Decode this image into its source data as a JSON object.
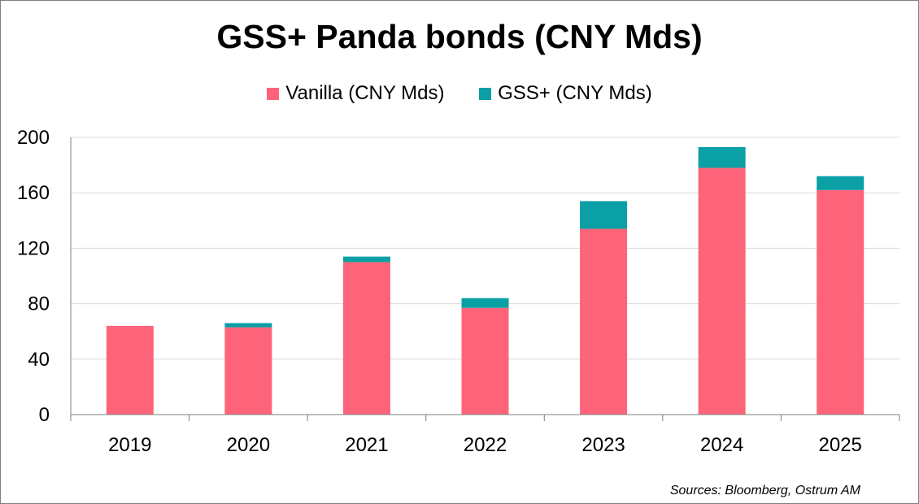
{
  "colors": {
    "vanilla": "#fe6479",
    "gss": "#0aa0a6",
    "grid": "#d9d9d9",
    "axis": "#7f7f7f"
  },
  "chart_data": {
    "type": "bar",
    "stacked": true,
    "title": "GSS+ Panda bonds (CNY Mds)",
    "categories": [
      "2019",
      "2020",
      "2021",
      "2022",
      "2023",
      "2024",
      "2025"
    ],
    "series": [
      {
        "name": "Vanilla (CNY Mds)",
        "values": [
          64,
          63,
          110,
          77,
          134,
          178,
          162
        ]
      },
      {
        "name": "GSS+ (CNY Mds)",
        "values": [
          0,
          3,
          4,
          7,
          20,
          15,
          10
        ]
      }
    ],
    "ylim": [
      0,
      200
    ],
    "yticks": [
      "0",
      "40",
      "80",
      "120",
      "160",
      "200"
    ],
    "xlabel": "",
    "ylabel": "",
    "grid": true,
    "legend": "top-center"
  },
  "source": "Sources: Bloomberg, Ostrum AM"
}
